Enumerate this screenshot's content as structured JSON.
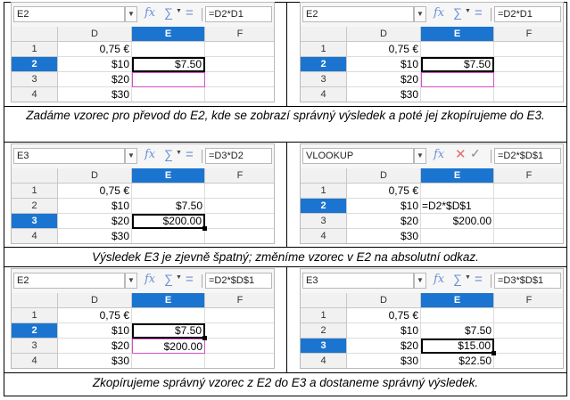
{
  "captions": [
    "Zadáme vzorec pro převod do E2, kde se zobrazí správný výsledek a poté jej zkopírujeme do E3.",
    "Výsledek E3 je zjevně špatný; změníme vzorec v E2 na absolutní odkaz.",
    "Zkopírujeme správný vzorec z E2 do E3 a dostaneme správný výsledek."
  ],
  "column_headers": [
    "D",
    "E",
    "F"
  ],
  "row_headers": [
    "1",
    "2",
    "3",
    "4"
  ],
  "icons": {
    "function_wizard": "fx-icon",
    "sum": "sigma-icon",
    "formula": "equals-icon",
    "cancel": "x-icon",
    "accept": "check-icon",
    "dropdown": "chevron-down-icon"
  },
  "colors": {
    "active_header": "#1b75d0",
    "copy_outline": "#d44fc8",
    "fx": "#6b8fd6"
  },
  "panels": [
    {
      "namebox": "E2",
      "formula": "=D2*D1",
      "mode": "normal",
      "active_row": 1,
      "sel_row": 1,
      "copy_row": 2,
      "handle": false,
      "cells": [
        [
          "0,75 €",
          "",
          ""
        ],
        [
          "$10",
          "$7.50",
          ""
        ],
        [
          "$20",
          "",
          ""
        ],
        [
          "$30",
          "",
          ""
        ]
      ]
    },
    {
      "namebox": "E2",
      "formula": "=D2*D1",
      "mode": "normal",
      "active_row": 1,
      "sel_row": 1,
      "copy_row": 2,
      "handle": false,
      "cells": [
        [
          "0,75 €",
          "",
          ""
        ],
        [
          "$10",
          "$7.50",
          ""
        ],
        [
          "$20",
          "",
          ""
        ],
        [
          "$30",
          "",
          ""
        ]
      ]
    },
    {
      "namebox": "E3",
      "formula": "=D3*D2",
      "mode": "normal",
      "active_row": 2,
      "sel_row": 2,
      "copy_row": -1,
      "handle": true,
      "cells": [
        [
          "0,75 €",
          "",
          ""
        ],
        [
          "$10",
          "$7.50",
          ""
        ],
        [
          "$20",
          "$200.00",
          ""
        ],
        [
          "$30",
          "",
          ""
        ]
      ]
    },
    {
      "namebox": "VLOOKUP",
      "formula": "=D2*$D$1",
      "mode": "edit",
      "active_row": 1,
      "sel_row": -1,
      "copy_row": -1,
      "handle": false,
      "edit_row": 1,
      "cells": [
        [
          "0,75 €",
          "",
          ""
        ],
        [
          "$10",
          "=D2*$D$1",
          ""
        ],
        [
          "$20",
          "$200.00",
          ""
        ],
        [
          "$30",
          "",
          ""
        ]
      ]
    },
    {
      "namebox": "E2",
      "formula": "=D2*$D$1",
      "mode": "normal",
      "active_row": 1,
      "sel_row": 1,
      "copy_row": 2,
      "handle": true,
      "cells": [
        [
          "0,75 €",
          "",
          ""
        ],
        [
          "$10",
          "$7.50",
          ""
        ],
        [
          "$20",
          "$200.00",
          ""
        ],
        [
          "$30",
          "",
          ""
        ]
      ]
    },
    {
      "namebox": "E3",
      "formula": "=D3*$D$1",
      "mode": "normal",
      "active_row": 2,
      "sel_row": 2,
      "copy_row": -1,
      "handle": true,
      "cells": [
        [
          "0,75 €",
          "",
          ""
        ],
        [
          "$10",
          "$7.50",
          ""
        ],
        [
          "$20",
          "$15.00",
          ""
        ],
        [
          "$30",
          "$22.50",
          ""
        ]
      ]
    }
  ]
}
